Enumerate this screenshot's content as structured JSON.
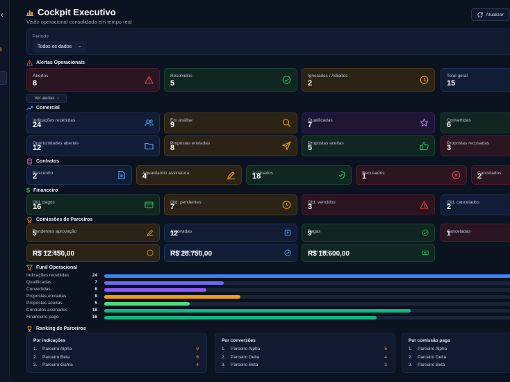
{
  "header": {
    "title": "Cockpit Executivo",
    "subtitle": "Visão operacional consolidada em tempo real",
    "refresh_label": "Atualizar"
  },
  "period": {
    "label": "Período",
    "value": "Todos os dados"
  },
  "alerts": {
    "title": "Alertas Operacionais",
    "cards": [
      {
        "label": "Abertos",
        "value": "8",
        "color": "red",
        "icon": "warning-icon"
      },
      {
        "label": "Resolvidos",
        "value": "5",
        "color": "green",
        "icon": "check-circle-icon"
      },
      {
        "label": "Ignorados / Adiados",
        "value": "2",
        "color": "amber",
        "icon": "clock-icon"
      },
      {
        "label": "Total geral",
        "value": "15",
        "color": "blue",
        "icon": ""
      }
    ],
    "more_label": "Ver alertas"
  },
  "comercial": {
    "title": "Comercial",
    "cards": [
      {
        "label": "Indicações recebidas",
        "value": "24",
        "color": "blue",
        "icon": "users-icon"
      },
      {
        "label": "Em análise",
        "value": "9",
        "color": "amber",
        "icon": "search-icon"
      },
      {
        "label": "Qualificadas",
        "value": "7",
        "color": "purple",
        "icon": "star-badge-icon"
      },
      {
        "label": "Convertidas",
        "value": "6",
        "color": "green",
        "icon": ""
      },
      {
        "label": "Oportunidades abertas",
        "value": "12",
        "color": "blue",
        "icon": "folder-icon"
      },
      {
        "label": "Propostas enviadas",
        "value": "8",
        "color": "amber",
        "icon": "send-icon"
      },
      {
        "label": "Propostas aceitas",
        "value": "5",
        "color": "green",
        "icon": "thumbs-up-icon"
      },
      {
        "label": "Propostas recusadas",
        "value": "3",
        "color": "red",
        "icon": ""
      }
    ]
  },
  "contratos": {
    "title": "Contratos",
    "cards": [
      {
        "label": "Rascunho",
        "value": "2",
        "color": "blue",
        "icon": "document-icon"
      },
      {
        "label": "Aguardando assinatura",
        "value": "4",
        "color": "amber",
        "icon": "pen-icon"
      },
      {
        "label": "Assinados",
        "value": "18",
        "color": "green",
        "icon": "shield-check-icon"
      },
      {
        "label": "Recusados",
        "value": "1",
        "color": "red",
        "icon": "x-circle-icon"
      },
      {
        "label": "Cancelados",
        "value": "2",
        "color": "red",
        "icon": ""
      }
    ]
  },
  "financeiro": {
    "title": "Financeiro",
    "cards": [
      {
        "label": "Qtd. pagos",
        "value": "16",
        "color": "green",
        "icon": "card-icon"
      },
      {
        "label": "Qtd. pendentes",
        "value": "7",
        "color": "amber",
        "icon": "clock-icon"
      },
      {
        "label": "Qtd. vencidos",
        "value": "3",
        "color": "red",
        "icon": "warning-icon"
      },
      {
        "label": "Qtd. cancelados",
        "value": "2",
        "color": "blue",
        "icon": ""
      }
    ]
  },
  "comissoes": {
    "title": "Comissões de Parceiros",
    "cards": [
      {
        "label": "Pendentes aprovação",
        "value": "5",
        "color": "amber",
        "icon": "pen-icon"
      },
      {
        "label": "Aprovadas",
        "value": "12",
        "color": "blue",
        "icon": "plus-square-icon"
      },
      {
        "label": "Pagas",
        "value": "9",
        "color": "green",
        "icon": "check-circle-icon"
      },
      {
        "label": "Canceladas",
        "value": "1",
        "color": "red",
        "icon": ""
      },
      {
        "label": "Valor pendente",
        "value": "R$ 12.450,00",
        "color": "amber",
        "icon": "coin-icon"
      },
      {
        "label": "Valor aprovado",
        "value": "R$ 28.750,00",
        "color": "blue",
        "icon": "check-circle-icon"
      },
      {
        "label": "Valor pago",
        "value": "R$ 18.600,00",
        "color": "green",
        "icon": "cash-icon"
      }
    ]
  },
  "funil": {
    "title": "Funil Operacional",
    "max": 24,
    "rows": [
      {
        "label": "Indicações recebidas",
        "value": 24,
        "color": "#3b82f6"
      },
      {
        "label": "Qualificadas",
        "value": 7,
        "color": "#6d6af0"
      },
      {
        "label": "Convertidas",
        "value": 6,
        "color": "#8b5cf6"
      },
      {
        "label": "Propostas enviadas",
        "value": 8,
        "color": "#f59e0b"
      },
      {
        "label": "Propostas aceitas",
        "value": 5,
        "color": "#4ade80"
      },
      {
        "label": "Contratos assinados",
        "value": 18,
        "color": "#10b981"
      },
      {
        "label": "Financeiro pago",
        "value": 16,
        "color": "#10b981"
      }
    ]
  },
  "ranking": {
    "title": "Ranking de Parceiros",
    "groups": [
      {
        "title": "Por indicações",
        "rows": [
          {
            "n": "1.",
            "name": "Parceiro Alpha",
            "v": "9"
          },
          {
            "n": "2.",
            "name": "Parceiro Beta",
            "v": "6"
          },
          {
            "n": "3.",
            "name": "Parceiro Gama",
            "v": "4"
          }
        ]
      },
      {
        "title": "Por conversões",
        "rows": [
          {
            "n": "1.",
            "name": "Parceiro Alpha",
            "v": "5"
          },
          {
            "n": "2.",
            "name": "Parceiro Delta",
            "v": "4"
          },
          {
            "n": "3.",
            "name": "Parceiro Beta",
            "v": "3"
          }
        ]
      },
      {
        "title": "Por comissão paga",
        "rows": [
          {
            "n": "1.",
            "name": "Parceiro Alpha",
            "v": ""
          },
          {
            "n": "2.",
            "name": "Parceiro Delta",
            "v": ""
          },
          {
            "n": "3.",
            "name": "Parceiro Beta",
            "v": ""
          }
        ]
      }
    ]
  }
}
